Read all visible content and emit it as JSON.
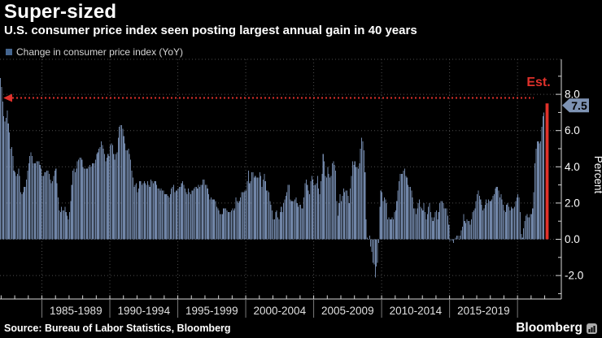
{
  "header": {
    "title": "Super-sized",
    "subtitle": "U.S. consumer price index seen posting largest annual gain in 40 years"
  },
  "legend": {
    "label": "Change in consumer price index (YoY)"
  },
  "source": {
    "text": "Source: Bureau of Labor Statistics, Bloomberg"
  },
  "branding": {
    "logo_text": "Bloomberg"
  },
  "colors": {
    "background": "#000000",
    "bar": "#7186a8",
    "legend_swatch": "#44658f",
    "accent_red": "#e0312b",
    "axis": "#d9d9d9",
    "grid": "#4d4d4d",
    "separator": "#7a7a7a",
    "text": "#ffffff",
    "muted_text": "#e0e0e0",
    "badge_fill": "#7e93b4",
    "badge_text": "#000000"
  },
  "annotations": {
    "est_label": "Est.",
    "badge_label": "7.5",
    "record_line_value": 7.8
  },
  "y_axis": {
    "title": "Percent",
    "ticks": [
      {
        "value": 8,
        "label": "8.0"
      },
      {
        "value": 6,
        "label": "6.0"
      },
      {
        "value": 4,
        "label": "4.0"
      },
      {
        "value": 2,
        "label": "2.0"
      },
      {
        "value": 0,
        "label": "0.0"
      },
      {
        "value": -2,
        "label": "-2.0"
      }
    ],
    "minor_step": 1
  },
  "x_axis": {
    "labels": [
      "1985-1989",
      "1990-1994",
      "1995-1999",
      "2000-2004",
      "2005-2009",
      "2010-2014",
      "2015-2019"
    ],
    "separator_years": [
      1985,
      1990,
      1995,
      2000,
      2005,
      2010,
      2015,
      2020
    ],
    "first_year": 1982,
    "last_year": 2022
  },
  "chart_data": {
    "type": "bar",
    "title": "Change in consumer price index (YoY)",
    "xlabel": "",
    "ylabel": "Percent",
    "ylim": [
      -3.3,
      10
    ],
    "grid": true,
    "frequency": "monthly",
    "start_month": "1981-12",
    "end_month": "2021-12",
    "values": [
      8.9,
      8.4,
      7.6,
      6.8,
      6.5,
      6.7,
      7.1,
      6.4,
      5.9,
      5.0,
      5.1,
      4.6,
      3.8,
      3.7,
      3.5,
      3.6,
      3.9,
      3.5,
      2.6,
      2.5,
      2.6,
      2.9,
      2.9,
      3.3,
      3.8,
      4.2,
      4.6,
      4.8,
      4.6,
      4.2,
      4.2,
      4.2,
      4.3,
      4.3,
      4.3,
      4.1,
      3.9,
      3.5,
      3.5,
      3.7,
      3.7,
      3.8,
      3.8,
      3.6,
      3.3,
      3.1,
      3.2,
      3.5,
      3.8,
      3.9,
      3.1,
      2.3,
      1.6,
      1.5,
      1.8,
      1.6,
      1.6,
      1.8,
      1.5,
      1.3,
      1.1,
      1.5,
      2.1,
      3.0,
      3.8,
      3.9,
      3.7,
      3.9,
      4.3,
      4.4,
      4.5,
      4.5,
      4.4,
      4.0,
      3.9,
      3.9,
      3.9,
      3.9,
      4.0,
      4.1,
      4.0,
      4.2,
      4.2,
      4.2,
      4.4,
      4.7,
      4.8,
      5.0,
      5.1,
      5.4,
      5.2,
      5.0,
      4.7,
      4.3,
      4.5,
      4.7,
      4.6,
      5.2,
      5.3,
      5.2,
      4.7,
      4.4,
      4.7,
      4.8,
      5.6,
      6.2,
      6.3,
      6.3,
      6.1,
      5.7,
      5.3,
      4.9,
      4.9,
      5.0,
      4.7,
      4.4,
      3.8,
      3.4,
      2.9,
      3.0,
      3.1,
      2.6,
      2.8,
      3.2,
      3.2,
      3.0,
      3.1,
      3.2,
      3.1,
      3.0,
      3.2,
      3.0,
      2.9,
      3.3,
      3.2,
      3.1,
      3.2,
      3.2,
      3.0,
      2.8,
      2.8,
      2.7,
      2.8,
      2.7,
      2.7,
      2.5,
      2.5,
      2.5,
      2.4,
      2.3,
      2.5,
      2.8,
      2.9,
      3.0,
      2.6,
      2.7,
      2.7,
      2.8,
      2.9,
      2.9,
      3.1,
      3.2,
      3.0,
      2.8,
      2.6,
      2.5,
      2.8,
      2.6,
      2.5,
      2.7,
      2.7,
      2.8,
      2.9,
      2.9,
      2.8,
      3.0,
      2.9,
      3.0,
      3.0,
      3.3,
      3.3,
      3.0,
      3.0,
      2.8,
      2.5,
      2.2,
      2.3,
      2.2,
      2.2,
      2.2,
      2.1,
      1.8,
      1.7,
      1.6,
      1.4,
      1.4,
      1.4,
      1.7,
      1.7,
      1.7,
      1.6,
      1.5,
      1.5,
      1.5,
      1.6,
      1.7,
      1.6,
      1.7,
      2.3,
      2.1,
      2.0,
      2.1,
      2.3,
      2.6,
      2.6,
      2.6,
      2.7,
      2.7,
      3.2,
      3.8,
      3.1,
      3.2,
      3.7,
      3.7,
      3.4,
      3.5,
      3.4,
      3.4,
      3.4,
      3.7,
      3.5,
      2.9,
      3.3,
      3.6,
      3.2,
      2.7,
      2.7,
      2.6,
      2.1,
      1.9,
      1.6,
      1.1,
      1.1,
      1.5,
      1.6,
      1.2,
      1.1,
      1.5,
      1.8,
      1.5,
      2.0,
      2.2,
      2.4,
      2.6,
      3.0,
      3.0,
      2.2,
      2.1,
      2.1,
      2.1,
      2.2,
      2.3,
      2.0,
      1.8,
      1.9,
      1.9,
      1.7,
      1.7,
      2.3,
      3.1,
      3.3,
      3.0,
      2.7,
      2.5,
      3.2,
      3.5,
      3.3,
      3.0,
      3.0,
      3.1,
      3.5,
      2.8,
      2.5,
      3.2,
      3.6,
      4.7,
      4.3,
      3.5,
      3.4,
      4.0,
      3.6,
      3.4,
      3.5,
      4.2,
      4.3,
      4.1,
      3.8,
      2.1,
      1.3,
      2.0,
      2.5,
      2.1,
      2.4,
      2.8,
      2.6,
      2.7,
      2.7,
      2.4,
      2.0,
      2.8,
      3.5,
      4.3,
      4.1,
      4.3,
      4.0,
      4.0,
      3.9,
      4.2,
      5.0,
      5.6,
      5.4,
      4.9,
      3.7,
      1.1,
      0.1,
      0.0,
      0.2,
      -0.4,
      -0.7,
      -1.3,
      -1.4,
      -2.1,
      -1.5,
      -1.3,
      -0.2,
      1.8,
      2.7,
      2.6,
      2.1,
      2.3,
      2.2,
      2.0,
      1.1,
      1.2,
      1.1,
      1.1,
      1.2,
      1.1,
      1.5,
      1.6,
      2.1,
      2.7,
      3.2,
      3.6,
      3.6,
      3.6,
      3.8,
      3.9,
      3.5,
      3.4,
      3.0,
      2.9,
      2.9,
      2.7,
      2.3,
      1.7,
      1.7,
      1.4,
      1.7,
      2.0,
      2.2,
      1.8,
      1.7,
      1.6,
      2.0,
      1.5,
      1.1,
      1.4,
      1.8,
      2.0,
      1.5,
      1.2,
      1.0,
      1.2,
      1.5,
      1.6,
      1.1,
      1.5,
      2.0,
      2.1,
      2.1,
      2.0,
      1.7,
      1.7,
      1.7,
      1.3,
      0.8,
      -0.1,
      0.0,
      -0.1,
      -0.2,
      0.0,
      0.1,
      0.2,
      0.2,
      0.0,
      0.2,
      0.5,
      0.7,
      1.4,
      1.0,
      0.9,
      1.1,
      1.0,
      1.0,
      0.8,
      1.1,
      1.5,
      1.6,
      1.7,
      2.1,
      2.5,
      2.7,
      2.4,
      2.2,
      1.9,
      1.6,
      1.7,
      1.9,
      2.2,
      2.0,
      2.2,
      2.1,
      2.1,
      2.2,
      2.4,
      2.5,
      2.8,
      2.9,
      2.9,
      2.7,
      2.3,
      2.5,
      2.2,
      1.9,
      1.6,
      1.5,
      1.9,
      2.0,
      1.8,
      1.6,
      1.8,
      1.7,
      1.7,
      1.8,
      2.1,
      2.3,
      2.5,
      2.3,
      1.5,
      0.3,
      0.1,
      0.6,
      1.0,
      1.3,
      1.4,
      1.2,
      1.2,
      1.4,
      1.4,
      1.7,
      2.6,
      4.2,
      5.0,
      5.4,
      5.4,
      5.3,
      5.4,
      6.2,
      6.8,
      7.0
    ],
    "estimate": {
      "period": "2022-01",
      "value": 7.5,
      "label": "Est."
    }
  }
}
